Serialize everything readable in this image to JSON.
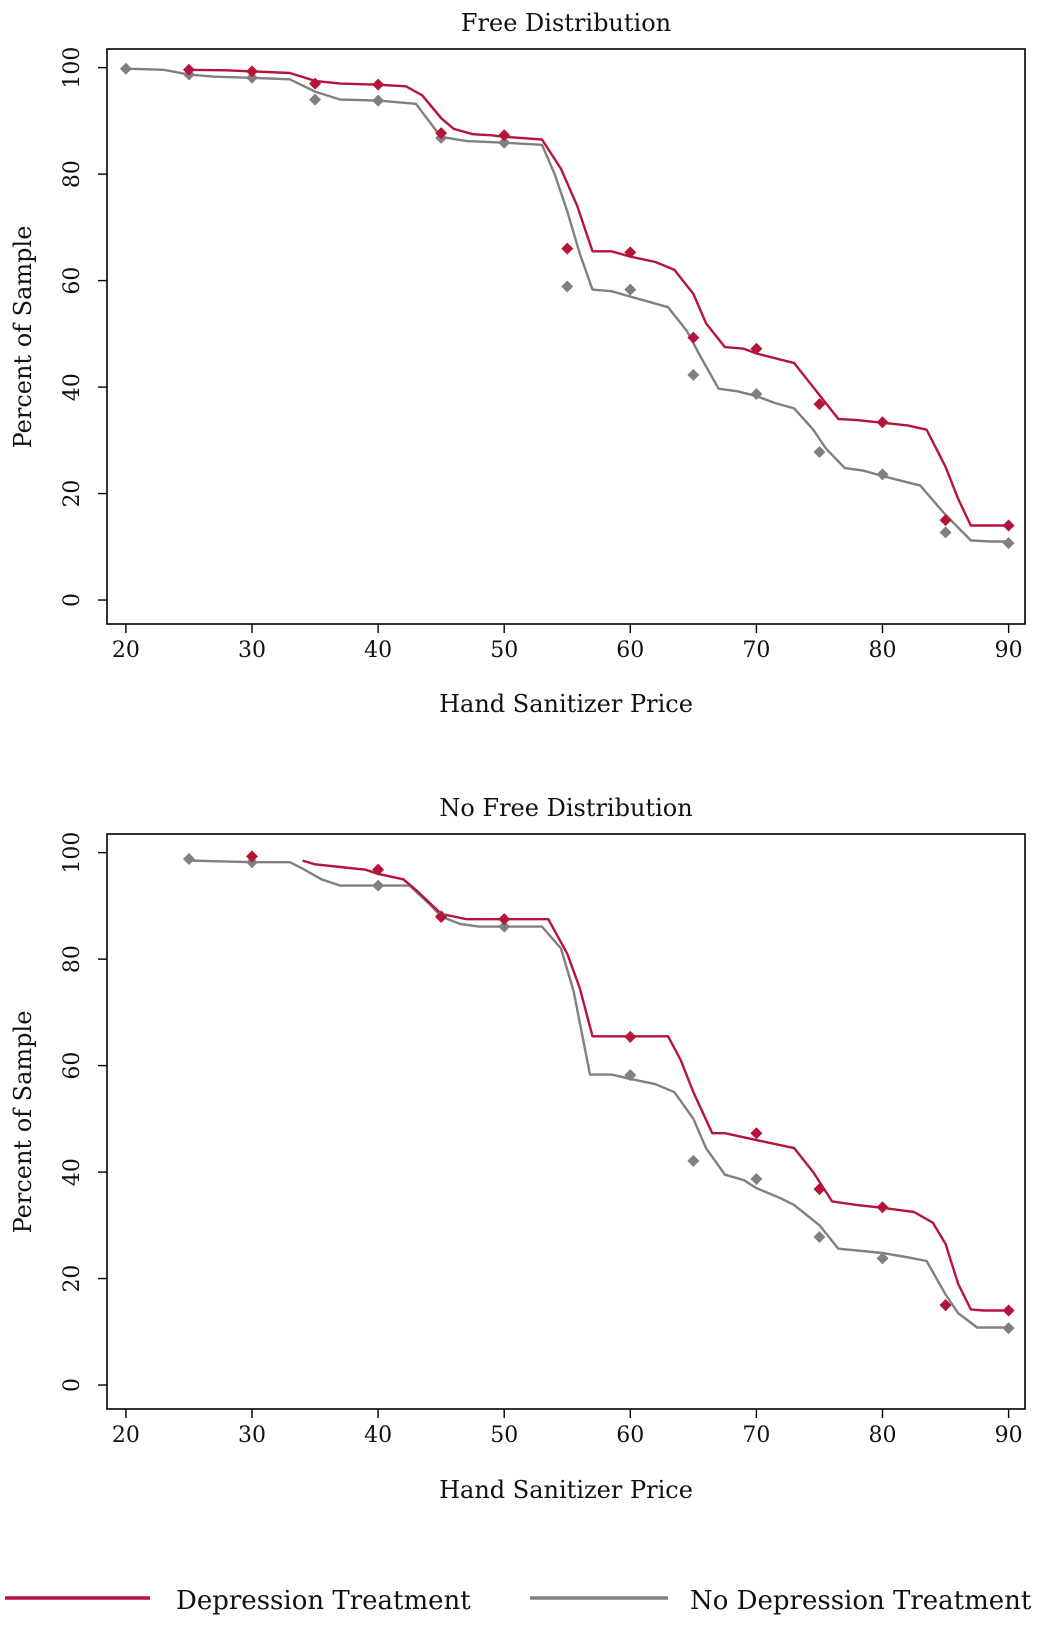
{
  "colors": {
    "depression": "#b5143c",
    "no_depression": "#808080"
  },
  "legend": {
    "placement": "bottom",
    "items": [
      {
        "label": "Depression Treatment",
        "color": "#b5143c"
      },
      {
        "label": "No Depression Treatment",
        "color": "#808080"
      }
    ]
  },
  "chart_data": [
    {
      "type": "line",
      "title": "Free Distribution",
      "xlabel": "Hand Sanitizer Price",
      "ylabel": "Percent of Sample",
      "xlim": [
        18.5,
        91.3
      ],
      "ylim": [
        -4.5,
        103.5
      ],
      "xticks": [
        20,
        30,
        40,
        50,
        60,
        70,
        80,
        90
      ],
      "yticks": [
        0,
        20,
        40,
        60,
        80,
        100
      ],
      "grid": false,
      "series": [
        {
          "name": "Depression Treatment",
          "color": "#b5143c",
          "line": [
            [
              25,
              99.6
            ],
            [
              28,
              99.5
            ],
            [
              30,
              99.3
            ],
            [
              33,
              99.0
            ],
            [
              35,
              97.5
            ],
            [
              37,
              97.0
            ],
            [
              40,
              96.8
            ],
            [
              42.2,
              96.5
            ],
            [
              43.5,
              94.8
            ],
            [
              45,
              90.5
            ],
            [
              46,
              88.5
            ],
            [
              47.5,
              87.5
            ],
            [
              49,
              87.3
            ],
            [
              50,
              87.0
            ],
            [
              53,
              86.5
            ],
            [
              54.5,
              81.0
            ],
            [
              55.8,
              74.0
            ],
            [
              57,
              65.5
            ],
            [
              58.5,
              65.5
            ],
            [
              60,
              64.5
            ],
            [
              62,
              63.5
            ],
            [
              63.5,
              62.0
            ],
            [
              65,
              57.5
            ],
            [
              66,
              52.0
            ],
            [
              67.5,
              47.5
            ],
            [
              69,
              47.2
            ],
            [
              70,
              46.3
            ],
            [
              73,
              44.5
            ],
            [
              75,
              38.5
            ],
            [
              76.5,
              34.0
            ],
            [
              78,
              33.8
            ],
            [
              80,
              33.3
            ],
            [
              82,
              32.8
            ],
            [
              83.5,
              32.0
            ],
            [
              85,
              25.0
            ],
            [
              86,
              19.0
            ],
            [
              87,
              14.0
            ],
            [
              88,
              14.0
            ],
            [
              90,
              14.0
            ]
          ],
          "points": [
            [
              25,
              99.6
            ],
            [
              30,
              99.3
            ],
            [
              35,
              97.0
            ],
            [
              40,
              96.8
            ],
            [
              45,
              87.7
            ],
            [
              50,
              87.3
            ],
            [
              55,
              66.0
            ],
            [
              60,
              65.3
            ],
            [
              65,
              49.3
            ],
            [
              70,
              47.2
            ],
            [
              75,
              36.8
            ],
            [
              80,
              33.4
            ],
            [
              85,
              15.0
            ],
            [
              90,
              14.0
            ]
          ]
        },
        {
          "name": "No Depression Treatment",
          "color": "#808080",
          "line": [
            [
              20,
              99.8
            ],
            [
              23,
              99.6
            ],
            [
              25,
              98.7
            ],
            [
              27,
              98.3
            ],
            [
              30,
              98.1
            ],
            [
              33,
              97.8
            ],
            [
              35,
              95.5
            ],
            [
              37,
              94.0
            ],
            [
              40,
              93.8
            ],
            [
              43,
              93.2
            ],
            [
              44.5,
              88.5
            ],
            [
              45,
              87.0
            ],
            [
              47,
              86.2
            ],
            [
              50,
              85.9
            ],
            [
              53,
              85.5
            ],
            [
              54,
              80.0
            ],
            [
              55,
              73.0
            ],
            [
              56,
              65.0
            ],
            [
              57,
              58.3
            ],
            [
              58.5,
              58.0
            ],
            [
              60,
              57.0
            ],
            [
              63,
              55.0
            ],
            [
              64.5,
              50.5
            ],
            [
              65.5,
              46.0
            ],
            [
              67,
              39.7
            ],
            [
              68.5,
              39.2
            ],
            [
              70,
              38.3
            ],
            [
              71.5,
              37.0
            ],
            [
              73,
              36.0
            ],
            [
              74.5,
              32.0
            ],
            [
              75.5,
              28.5
            ],
            [
              77,
              24.8
            ],
            [
              78.5,
              24.3
            ],
            [
              80,
              23.3
            ],
            [
              81.5,
              22.4
            ],
            [
              83,
              21.5
            ],
            [
              85,
              16.0
            ],
            [
              87,
              11.2
            ],
            [
              88.5,
              11.0
            ],
            [
              90,
              11.0
            ]
          ],
          "points": [
            [
              20,
              99.8
            ],
            [
              25,
              98.7
            ],
            [
              30,
              98.1
            ],
            [
              35,
              94.0
            ],
            [
              40,
              93.8
            ],
            [
              45,
              86.8
            ],
            [
              50,
              85.9
            ],
            [
              55,
              58.9
            ],
            [
              60,
              58.3
            ],
            [
              65,
              42.3
            ],
            [
              70,
              38.7
            ],
            [
              75,
              27.8
            ],
            [
              80,
              23.6
            ],
            [
              85,
              12.7
            ],
            [
              90,
              10.7
            ]
          ]
        }
      ]
    },
    {
      "type": "line",
      "title": "No Free Distribution",
      "xlabel": "Hand Sanitizer Price",
      "ylabel": "Percent of Sample",
      "xlim": [
        18.5,
        91.3
      ],
      "ylim": [
        -4.5,
        103.5
      ],
      "xticks": [
        20,
        30,
        40,
        50,
        60,
        70,
        80,
        90
      ],
      "yticks": [
        0,
        20,
        40,
        60,
        80,
        100
      ],
      "grid": false,
      "series": [
        {
          "name": "Depression Treatment",
          "color": "#b5143c",
          "line": [
            [
              34,
              98.5
            ],
            [
              35,
              97.8
            ],
            [
              37,
              97.3
            ],
            [
              39,
              96.8
            ],
            [
              40,
              96.0
            ],
            [
              42,
              95.0
            ],
            [
              43,
              93.0
            ],
            [
              45,
              88.5
            ],
            [
              46,
              88.0
            ],
            [
              47,
              87.5
            ],
            [
              50,
              87.5
            ],
            [
              53.5,
              87.5
            ],
            [
              55,
              81.0
            ],
            [
              56,
              74.5
            ],
            [
              57,
              65.5
            ],
            [
              60,
              65.5
            ],
            [
              63,
              65.5
            ],
            [
              64,
              61.0
            ],
            [
              65,
              55.0
            ],
            [
              66.5,
              47.3
            ],
            [
              67.5,
              47.3
            ],
            [
              70,
              46.0
            ],
            [
              73,
              44.5
            ],
            [
              74.5,
              40.0
            ],
            [
              76,
              34.5
            ],
            [
              78,
              33.8
            ],
            [
              80,
              33.3
            ],
            [
              82.5,
              32.5
            ],
            [
              84,
              30.5
            ],
            [
              85,
              26.5
            ],
            [
              86,
              19.0
            ],
            [
              87,
              14.2
            ],
            [
              88,
              14.0
            ],
            [
              90,
              14.0
            ]
          ],
          "points": [
            [
              30,
              99.3
            ],
            [
              40,
              96.8
            ],
            [
              45,
              87.9
            ],
            [
              50,
              87.5
            ],
            [
              60,
              65.4
            ],
            [
              70,
              47.3
            ],
            [
              75,
              36.8
            ],
            [
              80,
              33.4
            ],
            [
              85,
              15.0
            ],
            [
              90,
              14.0
            ]
          ]
        },
        {
          "name": "No Depression Treatment",
          "color": "#808080",
          "line": [
            [
              25,
              98.5
            ],
            [
              30,
              98.2
            ],
            [
              33,
              98.2
            ],
            [
              34,
              97.0
            ],
            [
              35.5,
              95.0
            ],
            [
              37,
              93.8
            ],
            [
              40,
              93.8
            ],
            [
              42.5,
              93.8
            ],
            [
              44,
              90.5
            ],
            [
              45,
              88.0
            ],
            [
              46.5,
              86.6
            ],
            [
              48,
              86.1
            ],
            [
              50,
              86.1
            ],
            [
              53,
              86.1
            ],
            [
              54.5,
              82.0
            ],
            [
              55.5,
              74.0
            ],
            [
              56.8,
              58.3
            ],
            [
              58.5,
              58.3
            ],
            [
              60,
              57.5
            ],
            [
              62,
              56.5
            ],
            [
              63.5,
              55.0
            ],
            [
              65,
              50.0
            ],
            [
              66,
              44.5
            ],
            [
              67.5,
              39.5
            ],
            [
              69,
              38.5
            ],
            [
              70,
              37.0
            ],
            [
              72,
              35.0
            ],
            [
              73,
              33.8
            ],
            [
              75,
              30.0
            ],
            [
              76.5,
              25.6
            ],
            [
              80,
              24.8
            ],
            [
              82,
              24.0
            ],
            [
              83.5,
              23.3
            ],
            [
              85,
              17.0
            ],
            [
              86,
              13.5
            ],
            [
              87.5,
              10.8
            ],
            [
              90,
              10.8
            ]
          ],
          "points": [
            [
              25,
              98.8
            ],
            [
              30,
              98.2
            ],
            [
              40,
              93.8
            ],
            [
              45,
              88.1
            ],
            [
              50,
              86.1
            ],
            [
              60,
              58.2
            ],
            [
              65,
              42.1
            ],
            [
              70,
              38.7
            ],
            [
              75,
              27.8
            ],
            [
              80,
              23.8
            ],
            [
              85,
              15.0
            ],
            [
              90,
              10.7
            ]
          ]
        }
      ]
    }
  ]
}
